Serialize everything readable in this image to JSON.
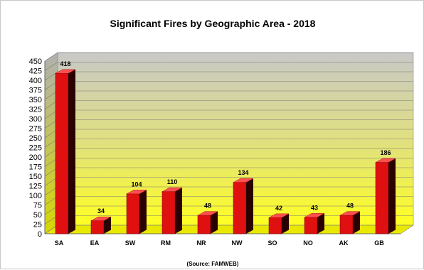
{
  "chart_data": {
    "type": "bar",
    "title": "Significant Fires by Geographic Area - 2018",
    "source": "(Source: FAMWEB)",
    "categories": [
      "SA",
      "EA",
      "SW",
      "RM",
      "NR",
      "NW",
      "SO",
      "NO",
      "AK",
      "GB"
    ],
    "values": [
      418,
      34,
      104,
      110,
      48,
      134,
      42,
      43,
      48,
      186
    ],
    "value_labels": [
      "418",
      "34",
      "104",
      "110",
      "48",
      "134",
      "42",
      "43",
      "48",
      "186"
    ],
    "yticks": [
      "0",
      "25",
      "50",
      "75",
      "100",
      "125",
      "150",
      "175",
      "200",
      "225",
      "250",
      "275",
      "300",
      "325",
      "350",
      "375",
      "400",
      "425",
      "450"
    ],
    "ylim": [
      0,
      450
    ],
    "xlabel": "",
    "ylabel": "",
    "grid": true,
    "legend": "none",
    "style": "3d",
    "colors": {
      "bar_front": "#e01010",
      "bar_side": "#2a0000",
      "bar_top": "#ff5050",
      "wall_top": "#c8c8c8",
      "wall_bottom": "#ffff22",
      "floor": "#e8e800",
      "grid": "#7a7a7a"
    }
  }
}
